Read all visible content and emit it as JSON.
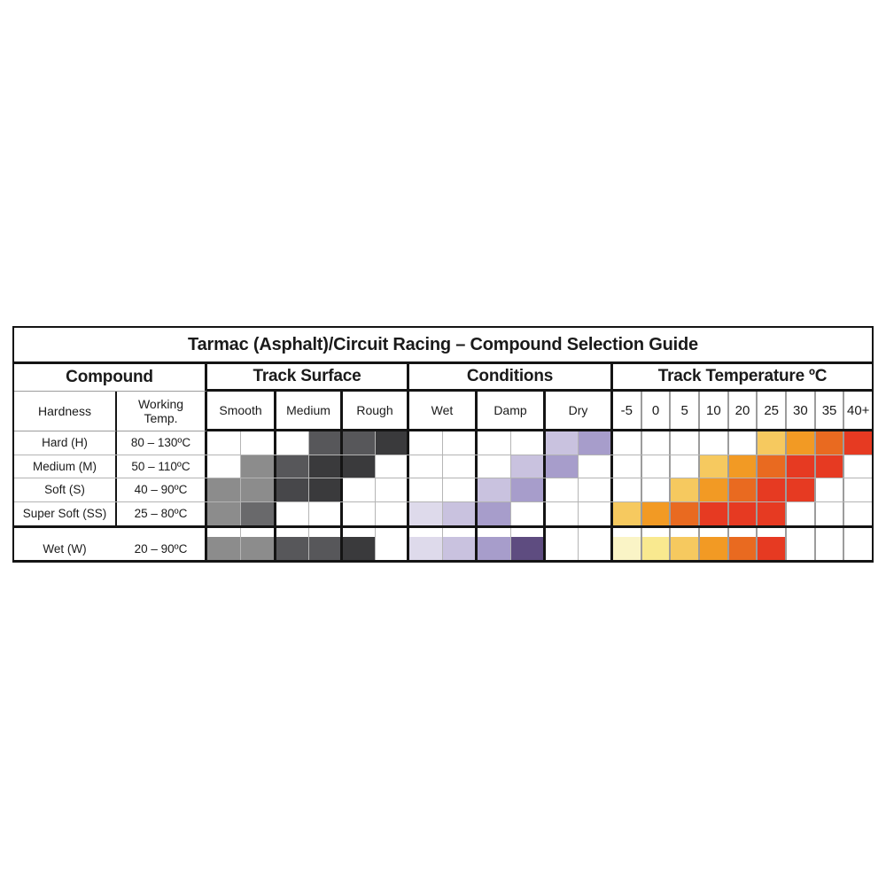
{
  "page": {
    "background": "#FFFFFF"
  },
  "borders": {
    "frame": "#141414",
    "minor_grid": "#B5B5B5",
    "temp_grid": "#9C9C9C"
  },
  "chart_data": {
    "type": "heatmap",
    "title": "Tarmac (Asphalt)/Circuit Racing – Compound Selection Guide",
    "column_groups": [
      {
        "label": "Compound",
        "columns": [
          "Hardness",
          "Working\nTemp."
        ]
      },
      {
        "label": "Track Surface",
        "columns": [
          "Smooth",
          "Medium",
          "Rough"
        ]
      },
      {
        "label": "Conditions",
        "columns": [
          "Wet",
          "Damp",
          "Dry"
        ]
      },
      {
        "label": "Track Temperature ºC",
        "columns": [
          "-5",
          "0",
          "5",
          "10",
          "20",
          "25",
          "30",
          "35",
          "40+"
        ]
      }
    ],
    "legend_note": "cell shading levels read from the image; 0 = blank/white, higher index = deeper shade; Track Surface and Conditions columns are split into left/right half-cells",
    "palettes": {
      "surface_gray": [
        "#8C8C8C",
        "#69696B",
        "#57575A",
        "#47474A",
        "#3A3A3C"
      ],
      "conditions_purple": [
        "#DEDAEB",
        "#C9C2DF",
        "#A79DCB",
        "#5E4C80"
      ],
      "temperature_heat": [
        "#FAF4C6",
        "#F9E98F",
        "#F6C95F",
        "#F29A24",
        "#E96A20",
        "#E63A22"
      ]
    },
    "rows": [
      {
        "hardness": "Hard (H)",
        "working_temp": "80 – 130ºC",
        "surface_halves": [
          0,
          0,
          0,
          3,
          3,
          5
        ],
        "conditions_halves": [
          0,
          0,
          0,
          0,
          2,
          3
        ],
        "temperature": [
          0,
          0,
          0,
          0,
          0,
          3,
          4,
          5,
          6
        ]
      },
      {
        "hardness": "Medium (M)",
        "working_temp": "50 – 110ºC",
        "surface_halves": [
          0,
          1,
          3,
          5,
          5,
          0
        ],
        "conditions_halves": [
          0,
          0,
          0,
          2,
          3,
          0
        ],
        "temperature": [
          0,
          0,
          0,
          3,
          4,
          5,
          6,
          6,
          0
        ]
      },
      {
        "hardness": "Soft (S)",
        "working_temp": "40 – 90ºC",
        "surface_halves": [
          1,
          1,
          4,
          5,
          0,
          0
        ],
        "conditions_halves": [
          0,
          0,
          2,
          3,
          0,
          0
        ],
        "temperature": [
          0,
          0,
          3,
          4,
          5,
          6,
          6,
          0,
          0
        ]
      },
      {
        "hardness": "Super Soft (SS)",
        "working_temp": "25 – 80ºC",
        "surface_halves": [
          1,
          2,
          0,
          0,
          0,
          0
        ],
        "conditions_halves": [
          1,
          2,
          3,
          0,
          0,
          0
        ],
        "temperature": [
          3,
          4,
          5,
          6,
          6,
          6,
          0,
          0,
          0
        ]
      }
    ],
    "wet_row": {
      "hardness": "Wet (W)",
      "working_temp": "20 – 90ºC",
      "surface_halves": [
        1,
        1,
        3,
        3,
        5,
        0
      ],
      "conditions_halves": [
        1,
        2,
        3,
        4,
        0,
        0
      ],
      "temperature": [
        1,
        2,
        3,
        4,
        5,
        6,
        0,
        0,
        0
      ]
    }
  }
}
